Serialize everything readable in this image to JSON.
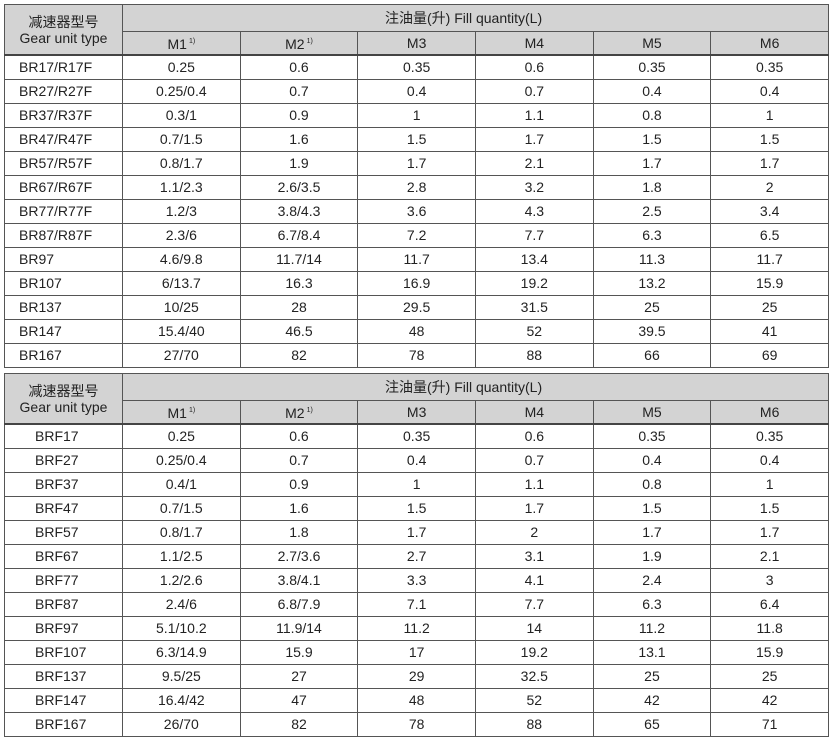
{
  "header": {
    "type_cn": "减速器型号",
    "type_en": "Gear unit type",
    "fill_title": "注油量(升) Fill quantity(L)",
    "positions": [
      "M1",
      "M2",
      "M3",
      "M4",
      "M5",
      "M6"
    ],
    "superscripts": [
      "1)",
      "1)",
      "",
      "",
      "",
      ""
    ]
  },
  "tables": [
    {
      "rows": [
        [
          "BR17/R17F",
          "0.25",
          "0.6",
          "0.35",
          "0.6",
          "0.35",
          "0.35"
        ],
        [
          "BR27/R27F",
          "0.25/0.4",
          "0.7",
          "0.4",
          "0.7",
          "0.4",
          "0.4"
        ],
        [
          "BR37/R37F",
          "0.3/1",
          "0.9",
          "1",
          "1.1",
          "0.8",
          "1"
        ],
        [
          "BR47/R47F",
          "0.7/1.5",
          "1.6",
          "1.5",
          "1.7",
          "1.5",
          "1.5"
        ],
        [
          "BR57/R57F",
          "0.8/1.7",
          "1.9",
          "1.7",
          "2.1",
          "1.7",
          "1.7"
        ],
        [
          "BR67/R67F",
          "1.1/2.3",
          "2.6/3.5",
          "2.8",
          "3.2",
          "1.8",
          "2"
        ],
        [
          "BR77/R77F",
          "1.2/3",
          "3.8/4.3",
          "3.6",
          "4.3",
          "2.5",
          "3.4"
        ],
        [
          "BR87/R87F",
          "2.3/6",
          "6.7/8.4",
          "7.2",
          "7.7",
          "6.3",
          "6.5"
        ],
        [
          "BR97",
          "4.6/9.8",
          "11.7/14",
          "11.7",
          "13.4",
          "11.3",
          "11.7"
        ],
        [
          "BR107",
          "6/13.7",
          "16.3",
          "16.9",
          "19.2",
          "13.2",
          "15.9"
        ],
        [
          "BR137",
          "10/25",
          "28",
          "29.5",
          "31.5",
          "25",
          "25"
        ],
        [
          "BR147",
          "15.4/40",
          "46.5",
          "48",
          "52",
          "39.5",
          "41"
        ],
        [
          "BR167",
          "27/70",
          "82",
          "78",
          "88",
          "66",
          "69"
        ]
      ]
    },
    {
      "rows": [
        [
          "BRF17",
          "0.25",
          "0.6",
          "0.35",
          "0.6",
          "0.35",
          "0.35"
        ],
        [
          "BRF27",
          "0.25/0.4",
          "0.7",
          "0.4",
          "0.7",
          "0.4",
          "0.4"
        ],
        [
          "BRF37",
          "0.4/1",
          "0.9",
          "1",
          "1.1",
          "0.8",
          "1"
        ],
        [
          "BRF47",
          "0.7/1.5",
          "1.6",
          "1.5",
          "1.7",
          "1.5",
          "1.5"
        ],
        [
          "BRF57",
          "0.8/1.7",
          "1.8",
          "1.7",
          "2",
          "1.7",
          "1.7"
        ],
        [
          "BRF67",
          "1.1/2.5",
          "2.7/3.6",
          "2.7",
          "3.1",
          "1.9",
          "2.1"
        ],
        [
          "BRF77",
          "1.2/2.6",
          "3.8/4.1",
          "3.3",
          "4.1",
          "2.4",
          "3"
        ],
        [
          "BRF87",
          "2.4/6",
          "6.8/7.9",
          "7.1",
          "7.7",
          "6.3",
          "6.4"
        ],
        [
          "BRF97",
          "5.1/10.2",
          "11.9/14",
          "11.2",
          "14",
          "11.2",
          "11.8"
        ],
        [
          "BRF107",
          "6.3/14.9",
          "15.9",
          "17",
          "19.2",
          "13.1",
          "15.9"
        ],
        [
          "BRF137",
          "9.5/25",
          "27",
          "29",
          "32.5",
          "25",
          "25"
        ],
        [
          "BRF147",
          "16.4/42",
          "47",
          "48",
          "52",
          "42",
          "42"
        ],
        [
          "BRF167",
          "26/70",
          "82",
          "78",
          "88",
          "65",
          "71"
        ]
      ]
    }
  ]
}
